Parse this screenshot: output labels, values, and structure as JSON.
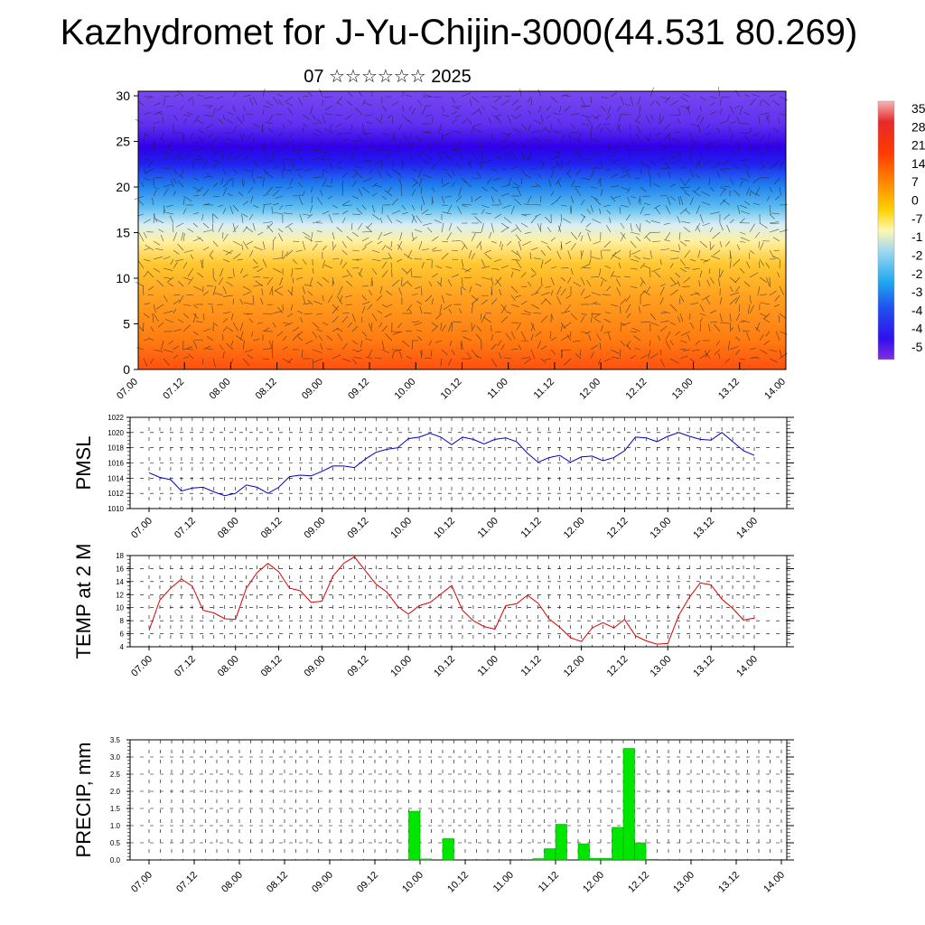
{
  "title": "Kazhydromet for J-Yu-Chijin-3000(44.531 80.269)",
  "subtitle": "07 ☆☆☆☆☆☆ 2025",
  "colors": {
    "pmsl_line": "#0000cc",
    "temp_line": "#dd0000",
    "precip_bar": "#00e600",
    "precip_bar_edge": "#009900"
  },
  "chart_data": [
    {
      "type": "heatmap",
      "name": "height-time section",
      "x_tick_labels": [
        "07.00",
        "07.12",
        "08.00",
        "08.12",
        "09.00",
        "09.12",
        "10.00",
        "10.12",
        "11.00",
        "11.12",
        "12.00",
        "12.12",
        "13.00",
        "13.12",
        "14.00"
      ],
      "y_ticks": [
        0,
        5,
        10,
        15,
        20,
        25,
        30
      ],
      "ylim": [
        0,
        30.5
      ],
      "colorbar_labels": [
        "35",
        "28",
        "21",
        "14",
        "7",
        "0",
        "-7",
        "-1",
        "-2",
        "-2",
        "-3",
        "-4",
        "-4",
        "-5"
      ],
      "colorbar_range": [
        -56,
        35
      ],
      "bands": [
        {
          "from": 0,
          "to": 3,
          "value": 21
        },
        {
          "from": 3,
          "to": 8,
          "value": 14
        },
        {
          "from": 8,
          "to": 12,
          "value": 7
        },
        {
          "from": 12,
          "to": 15,
          "value": 0
        },
        {
          "from": 15,
          "to": 17,
          "value": -14
        },
        {
          "from": 17,
          "to": 20,
          "value": -28
        },
        {
          "from": 20,
          "to": 22,
          "value": -42
        },
        {
          "from": 22,
          "to": 25,
          "value": -56
        },
        {
          "from": 25,
          "to": 30.5,
          "value": -50
        }
      ]
    },
    {
      "type": "line",
      "ylabel": "PMSL",
      "ylim": [
        1010,
        1022
      ],
      "y_ticks": [
        1010,
        1012,
        1014,
        1016,
        1018,
        1020,
        1022
      ],
      "x_tick_labels": [
        "07.00",
        "07.12",
        "08.00",
        "08.12",
        "09.00",
        "09.12",
        "10.00",
        "10.12",
        "11.00",
        "11.12",
        "12.00",
        "12.12",
        "13.00",
        "13.12",
        "14.00"
      ],
      "series": [
        {
          "values": [
            1014.7,
            1014.1,
            1013.8,
            1012.3,
            1012.7,
            1012.8,
            1012.2,
            1011.7,
            1012.0,
            1013.1,
            1012.8,
            1012.0,
            1012.8,
            1014.2,
            1014.4,
            1014.3,
            1014.9,
            1015.6,
            1015.6,
            1015.4,
            1016.5,
            1017.4,
            1017.8,
            1018.0,
            1019.2,
            1019.4,
            1019.9,
            1019.4,
            1018.4,
            1019.4,
            1019.1,
            1018.5,
            1019.1,
            1019.3,
            1018.8,
            1017.3,
            1016.1,
            1016.7,
            1017.0,
            1016.1,
            1016.8,
            1016.9,
            1016.3,
            1016.7,
            1017.6,
            1019.4,
            1019.3,
            1018.8,
            1019.5,
            1020.0,
            1019.5,
            1019.1,
            1019.0,
            1020.0,
            1018.8,
            1017.6,
            1017.0
          ]
        }
      ]
    },
    {
      "type": "line",
      "ylabel": "TEMP at 2 M",
      "ylim": [
        4,
        18
      ],
      "y_ticks": [
        4,
        6,
        8,
        10,
        12,
        14,
        16,
        18
      ],
      "x_tick_labels": [
        "07.00",
        "07.12",
        "08.00",
        "08.12",
        "09.00",
        "09.12",
        "10.00",
        "10.12",
        "11.00",
        "11.12",
        "12.00",
        "12.12",
        "13.00",
        "13.12",
        "14.00"
      ],
      "series": [
        {
          "values": [
            6.5,
            11.2,
            13.0,
            14.4,
            13.3,
            9.6,
            9.2,
            8.3,
            8.2,
            13.0,
            15.4,
            16.8,
            15.5,
            13.0,
            12.6,
            10.8,
            11.0,
            14.8,
            16.8,
            17.8,
            15.7,
            13.6,
            12.4,
            10.2,
            9.0,
            10.3,
            10.8,
            12.1,
            13.4,
            9.6,
            8.0,
            7.1,
            6.7,
            10.3,
            10.6,
            11.9,
            10.7,
            8.3,
            7.0,
            5.4,
            4.8,
            6.9,
            7.7,
            6.9,
            8.2,
            5.7,
            4.9,
            4.4,
            4.5,
            8.8,
            11.6,
            13.8,
            13.5,
            11.3,
            9.9,
            8.1,
            8.4
          ]
        }
      ]
    },
    {
      "type": "bar",
      "ylabel": "PRECIP, mm",
      "ylim": [
        0,
        3.5
      ],
      "y_ticks": [
        "0.0",
        "0.5",
        "1.0",
        "1.5",
        "2.0",
        "2.5",
        "3.0",
        "3.5"
      ],
      "x_tick_labels": [
        "07.00",
        "07.12",
        "08.00",
        "08.12",
        "09.00",
        "09.12",
        "10.00",
        "10.12",
        "11.00",
        "11.12",
        "12.00",
        "12.12",
        "13.00",
        "13.12",
        "14.00"
      ],
      "x": [
        23.5,
        24.5,
        26.5,
        34.5,
        35.5,
        36.5,
        37.5,
        38.5,
        39.5,
        40.5,
        41.5,
        42.5,
        43.5,
        44.5
      ],
      "values": [
        1.42,
        0.03,
        0.62,
        0.04,
        0.33,
        1.04,
        0.0,
        0.47,
        0.05,
        0.05,
        0.95,
        3.25,
        0.5,
        0.02
      ]
    }
  ]
}
